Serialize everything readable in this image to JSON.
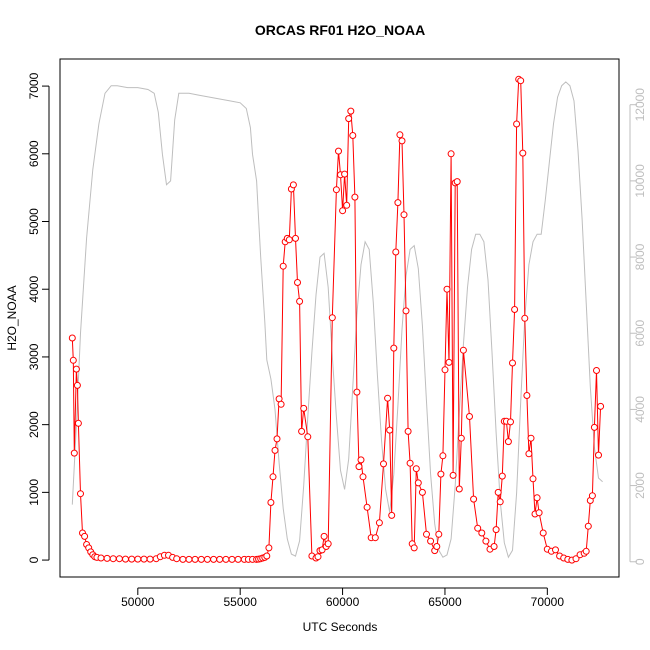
{
  "chart_data": {
    "type": "line",
    "title": "ORCAS RF01 H2O_NOAA",
    "xlabel": "UTC Seconds",
    "ylabel": "H2O_NOAA",
    "xlim": [
      46200,
      73500
    ],
    "ylim": [
      -250,
      7400
    ],
    "y2lim": [
      -400,
      13200
    ],
    "x_ticks": [
      50000,
      55000,
      60000,
      65000,
      70000
    ],
    "y_ticks": [
      0,
      1000,
      2000,
      3000,
      4000,
      5000,
      6000,
      7000
    ],
    "y2_ticks": [
      0,
      2000,
      4000,
      6000,
      8000,
      10000,
      12000
    ],
    "grid": false,
    "colors": {
      "primary": "#ff0000",
      "secondary": "#bebebe",
      "axes": "#000000",
      "right_axis": "#bebebe"
    },
    "series": [
      {
        "axis": "left",
        "style": "line+open-circle-markers",
        "x": [
          46800,
          46850,
          46900,
          47000,
          47050,
          47100,
          47200,
          47300,
          47400,
          47500,
          47600,
          47700,
          47800,
          47900,
          48000,
          48200,
          48500,
          48800,
          49100,
          49400,
          49700,
          50000,
          50300,
          50600,
          50900,
          51100,
          51300,
          51500,
          51700,
          51900,
          52200,
          52500,
          52800,
          53100,
          53400,
          53700,
          54000,
          54300,
          54600,
          54900,
          55200,
          55400,
          55600,
          55800,
          55900,
          56000,
          56100,
          56200,
          56300,
          56400,
          56500,
          56600,
          56700,
          56800,
          56900,
          57000,
          57100,
          57200,
          57300,
          57400,
          57500,
          57600,
          57700,
          57800,
          57900,
          58000,
          58100,
          58300,
          58500,
          58700,
          58800,
          58900,
          59000,
          59100,
          59200,
          59300,
          59500,
          59700,
          59800,
          59900,
          60000,
          60100,
          60200,
          60300,
          60400,
          60500,
          60600,
          60700,
          60800,
          60900,
          61000,
          61200,
          61400,
          61600,
          61800,
          62000,
          62200,
          62300,
          62400,
          62500,
          62600,
          62700,
          62800,
          62900,
          63000,
          63100,
          63200,
          63300,
          63400,
          63500,
          63600,
          63700,
          63900,
          64100,
          64300,
          64500,
          64600,
          64700,
          64800,
          64900,
          65000,
          65100,
          65200,
          65300,
          65400,
          65500,
          65600,
          65700,
          65800,
          65900,
          66200,
          66400,
          66600,
          66800,
          67000,
          67200,
          67400,
          67500,
          67600,
          67700,
          67800,
          67900,
          68000,
          68100,
          68200,
          68300,
          68400,
          68500,
          68600,
          68700,
          68800,
          68900,
          69000,
          69100,
          69200,
          69300,
          69400,
          69500,
          69600,
          69800,
          70000,
          70200,
          70400,
          70600,
          70800,
          71000,
          71200,
          71400,
          71600,
          71800,
          71900,
          72000,
          72100,
          72200,
          72300,
          72400,
          72500,
          72600
        ],
        "y": [
          3280,
          2950,
          1580,
          2820,
          2580,
          2020,
          980,
          400,
          350,
          230,
          180,
          120,
          80,
          50,
          40,
          30,
          25,
          20,
          20,
          15,
          15,
          15,
          15,
          15,
          20,
          50,
          70,
          70,
          40,
          20,
          10,
          10,
          10,
          10,
          10,
          10,
          10,
          10,
          10,
          10,
          10,
          10,
          10,
          10,
          15,
          20,
          30,
          40,
          60,
          180,
          850,
          1230,
          1620,
          1790,
          2380,
          2300,
          4340,
          4700,
          4750,
          4730,
          5480,
          5540,
          4750,
          4100,
          3820,
          1900,
          2240,
          1820,
          60,
          30,
          50,
          140,
          150,
          350,
          200,
          240,
          3580,
          5470,
          6040,
          5690,
          5160,
          5700,
          5240,
          6520,
          6630,
          6270,
          5360,
          2480,
          1380,
          1480,
          1230,
          780,
          330,
          330,
          550,
          1420,
          2390,
          1920,
          660,
          3130,
          4550,
          5280,
          6280,
          6190,
          5100,
          3680,
          1900,
          1430,
          240,
          180,
          1350,
          1140,
          1000,
          380,
          280,
          140,
          200,
          380,
          1270,
          1540,
          2810,
          4000,
          2920,
          6000,
          1250,
          5570,
          5590,
          1050,
          1800,
          3100,
          2120,
          900,
          470,
          400,
          280,
          160,
          200,
          450,
          1000,
          860,
          1240,
          2050,
          2050,
          1750,
          2040,
          2910,
          3700,
          6440,
          7100,
          7080,
          6010,
          3570,
          2430,
          1570,
          1800,
          1200,
          680,
          920,
          700,
          400,
          160,
          130,
          150,
          60,
          30,
          10,
          0,
          20,
          80,
          100,
          130,
          500,
          880,
          950,
          1960,
          2800,
          1550,
          2270
        ]
      },
      {
        "axis": "right",
        "style": "line",
        "x": [
          46800,
          47000,
          47200,
          47500,
          47800,
          48100,
          48400,
          48700,
          49000,
          49500,
          50000,
          50500,
          50800,
          51000,
          51200,
          51400,
          51600,
          51800,
          52000,
          52300,
          52500,
          53000,
          53500,
          54000,
          54500,
          55000,
          55300,
          55500,
          55600,
          55800,
          55900,
          56000,
          56200,
          56300,
          56500,
          56700,
          56900,
          57100,
          57300,
          57500,
          57700,
          57900,
          58100,
          58300,
          58500,
          58700,
          58900,
          59100,
          59300,
          59500,
          59700,
          59900,
          60100,
          60300,
          60500,
          60700,
          60900,
          61100,
          61300,
          61500,
          61700,
          61900,
          62100,
          62300,
          62500,
          62700,
          62900,
          63100,
          63300,
          63500,
          63700,
          63900,
          64100,
          64300,
          64500,
          64700,
          64900,
          65100,
          65300,
          65500,
          65700,
          65900,
          66100,
          66300,
          66500,
          66700,
          66900,
          67100,
          67300,
          67500,
          67700,
          67900,
          68100,
          68300,
          68500,
          68700,
          68900,
          69100,
          69300,
          69500,
          69700,
          69900,
          70100,
          70300,
          70500,
          70700,
          70900,
          71100,
          71300,
          71500,
          71700,
          71900,
          72100,
          72300,
          72500,
          72700
        ],
        "y": [
          1500,
          3600,
          6000,
          8500,
          10300,
          11500,
          12300,
          12500,
          12500,
          12450,
          12450,
          12400,
          12300,
          11800,
          10700,
          9900,
          10000,
          11600,
          12300,
          12300,
          12300,
          12250,
          12200,
          12150,
          12100,
          12050,
          11900,
          11400,
          10700,
          10000,
          9000,
          8000,
          6300,
          5300,
          4800,
          4000,
          2600,
          1400,
          600,
          200,
          150,
          550,
          2000,
          3800,
          5500,
          7000,
          8000,
          8100,
          7200,
          5400,
          3800,
          2400,
          1900,
          2700,
          4600,
          6500,
          7800,
          8400,
          8200,
          6800,
          4900,
          3200,
          1900,
          1300,
          2300,
          4100,
          6100,
          7500,
          8200,
          8300,
          7700,
          6200,
          4200,
          2300,
          1000,
          300,
          120,
          180,
          600,
          2000,
          3900,
          5700,
          7200,
          8200,
          8600,
          8600,
          8400,
          7400,
          5500,
          3400,
          1600,
          500,
          120,
          300,
          1800,
          4200,
          6400,
          7800,
          8400,
          8600,
          8600,
          9500,
          10500,
          11500,
          12200,
          12500,
          12600,
          12500,
          12100,
          10800,
          9000,
          6800,
          4600,
          3000,
          2200,
          2100
        ]
      }
    ]
  }
}
